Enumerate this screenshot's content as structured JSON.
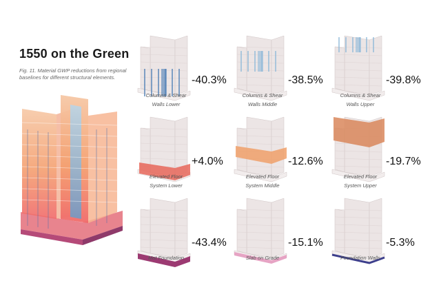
{
  "header": {
    "title": "1550 on the Green",
    "caption": "Fig. 11. Material GWP reductions from regional baselines for different structural elements."
  },
  "colors": {
    "ghost": "#ece5e5",
    "ghost_stroke": "#cfc4c4",
    "columns": "#4f7fb5",
    "columns_light": "#8fb9d8",
    "floor_lower": "#e8675a",
    "floor_middle": "#f0a06a",
    "floor_upper": "#d9875c",
    "mat": "#9c3a72",
    "slab": "#e6a4c4",
    "foundation": "#3d3f8c"
  },
  "panels": [
    {
      "key": "cw_lower",
      "value": "-40.3%",
      "label_1": "Columns & Shear",
      "label_2": "Walls Lower",
      "highlight": "columns_lower"
    },
    {
      "key": "cw_middle",
      "value": "-38.5%",
      "label_1": "Columns & Shear",
      "label_2": "Walls Middle",
      "highlight": "columns_middle"
    },
    {
      "key": "cw_upper",
      "value": "-39.8%",
      "label_1": "Columns & Shear",
      "label_2": "Walls Upper",
      "highlight": "columns_upper"
    },
    {
      "key": "ef_lower",
      "value": "+4.0%",
      "label_1": "Elevated Floor",
      "label_2": "System Lower",
      "highlight": "floor_lower"
    },
    {
      "key": "ef_middle",
      "value": "-12.6%",
      "label_1": "Elevated Floor",
      "label_2": "System Middle",
      "highlight": "floor_middle"
    },
    {
      "key": "ef_upper",
      "value": "-19.7%",
      "label_1": "Elevated Floor",
      "label_2": "System Upper",
      "highlight": "floor_upper"
    },
    {
      "key": "mat",
      "value": "-43.4%",
      "label_1": "Mat Foundation",
      "label_2": "",
      "highlight": "mat"
    },
    {
      "key": "slab",
      "value": "-15.1%",
      "label_1": "Slab on Grade",
      "label_2": "",
      "highlight": "slab"
    },
    {
      "key": "fwalls",
      "value": "-5.3%",
      "label_1": "Foundation Walls",
      "label_2": "",
      "highlight": "fwalls"
    }
  ]
}
